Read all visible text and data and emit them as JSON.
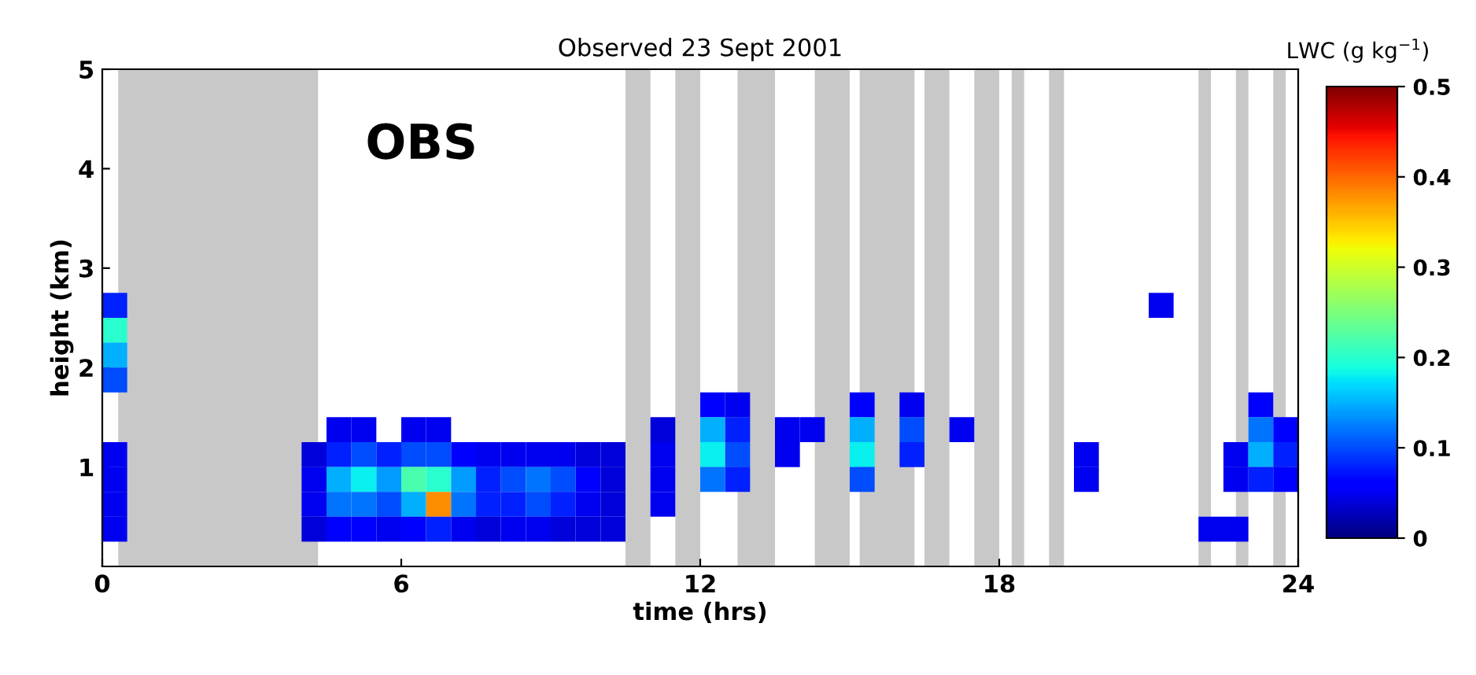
{
  "chart_data": {
    "type": "scatter",
    "title": "Observed 23 Sept 2001",
    "xlabel": "time (hrs)",
    "ylabel": "height (km)",
    "clabel": "LWC (g kg$^{−1}$)",
    "annotations": [
      "OBS"
    ],
    "marker": "square",
    "xlim": [
      0,
      24
    ],
    "xticks": [
      0,
      6,
      12,
      18,
      24
    ],
    "ylim": [
      0,
      5
    ],
    "yticks": [
      1,
      2,
      3,
      4,
      5
    ],
    "clim": [
      0,
      0.5
    ],
    "cticks": [
      0,
      0.1,
      0.2,
      0.3,
      0.4,
      0.5
    ],
    "bands": [
      {
        "axis": "x",
        "from": 0.32,
        "to": 4.33,
        "color": "#c8c8c8"
      },
      {
        "axis": "x",
        "from": 10.5,
        "to": 11.0,
        "color": "#c8c8c8"
      },
      {
        "axis": "x",
        "from": 11.5,
        "to": 12.0,
        "color": "#c8c8c8"
      },
      {
        "axis": "x",
        "from": 12.75,
        "to": 13.5,
        "color": "#c8c8c8"
      },
      {
        "axis": "x",
        "from": 14.3,
        "to": 15.0,
        "color": "#c8c8c8"
      },
      {
        "axis": "x",
        "from": 15.2,
        "to": 16.3,
        "color": "#c8c8c8"
      },
      {
        "axis": "x",
        "from": 16.5,
        "to": 17.0,
        "color": "#c8c8c8"
      },
      {
        "axis": "x",
        "from": 17.5,
        "to": 18.0,
        "color": "#c8c8c8"
      },
      {
        "axis": "x",
        "from": 18.25,
        "to": 18.5,
        "color": "#c8c8c8"
      },
      {
        "axis": "x",
        "from": 19.0,
        "to": 19.3,
        "color": "#c8c8c8"
      },
      {
        "axis": "x",
        "from": 22.0,
        "to": 22.25,
        "color": "#c8c8c8"
      },
      {
        "axis": "x",
        "from": 22.75,
        "to": 23.0,
        "color": "#c8c8c8"
      },
      {
        "axis": "x",
        "from": 23.5,
        "to": 23.75,
        "color": "#c8c8c8"
      }
    ],
    "series": [
      {
        "x": [
          0.25,
          21.25,
          0.25,
          0.25,
          0.25,
          12.25,
          12.75,
          15.25,
          16.25,
          23.25,
          4.75,
          5.25,
          6.25,
          6.75,
          11.25,
          12.25,
          12.75,
          13.75,
          14.25,
          15.25,
          16.25,
          17.25,
          23.25,
          23.75,
          0.25,
          4.25,
          4.75,
          5.25,
          5.75,
          6.25,
          6.75,
          7.25,
          7.75,
          8.25,
          8.75,
          9.25,
          9.75,
          10.25,
          11.25,
          12.25,
          12.75,
          13.75,
          15.25,
          16.25,
          19.75,
          22.75,
          23.25,
          23.75,
          0.25,
          4.25,
          4.75,
          5.25,
          5.75,
          6.25,
          6.75,
          7.25,
          7.75,
          8.25,
          8.75,
          9.25,
          9.75,
          10.25,
          11.25,
          12.25,
          12.75,
          15.25,
          19.75,
          22.75,
          23.25,
          23.75,
          0.25,
          4.25,
          4.75,
          5.25,
          5.75,
          6.25,
          6.75,
          7.25,
          7.75,
          8.25,
          8.75,
          9.25,
          9.75,
          10.25,
          11.25,
          0.25,
          4.25,
          4.75,
          5.25,
          5.75,
          6.25,
          6.75,
          7.25,
          7.75,
          8.25,
          8.75,
          9.25,
          9.75,
          10.25,
          22.25,
          22.75
        ],
        "values": [
          2.625,
          2.625,
          2.375,
          2.125,
          1.875,
          1.625,
          1.625,
          1.625,
          1.625,
          1.625,
          1.375,
          1.375,
          1.375,
          1.375,
          1.375,
          1.375,
          1.375,
          1.375,
          1.375,
          1.375,
          1.375,
          1.375,
          1.375,
          1.375,
          1.125,
          1.125,
          1.125,
          1.125,
          1.125,
          1.125,
          1.125,
          1.125,
          1.125,
          1.125,
          1.125,
          1.125,
          1.125,
          1.125,
          1.125,
          1.125,
          1.125,
          1.125,
          1.125,
          1.125,
          1.125,
          1.125,
          1.125,
          1.125,
          0.875,
          0.875,
          0.875,
          0.875,
          0.875,
          0.875,
          0.875,
          0.875,
          0.875,
          0.875,
          0.875,
          0.875,
          0.875,
          0.875,
          0.875,
          0.875,
          0.875,
          0.875,
          0.875,
          0.875,
          0.875,
          0.875,
          0.625,
          0.625,
          0.625,
          0.625,
          0.625,
          0.625,
          0.625,
          0.625,
          0.625,
          0.625,
          0.625,
          0.625,
          0.625,
          0.625,
          0.625,
          0.375,
          0.375,
          0.375,
          0.375,
          0.375,
          0.375,
          0.375,
          0.375,
          0.375,
          0.375,
          0.375,
          0.375,
          0.375,
          0.375,
          0.375,
          0.375
        ],
        "cvalues": [
          0.08,
          0.05,
          0.2,
          0.15,
          0.1,
          0.06,
          0.05,
          0.06,
          0.05,
          0.06,
          0.05,
          0.05,
          0.05,
          0.05,
          0.04,
          0.15,
          0.08,
          0.05,
          0.05,
          0.15,
          0.1,
          0.05,
          0.12,
          0.06,
          0.05,
          0.04,
          0.08,
          0.1,
          0.08,
          0.1,
          0.1,
          0.06,
          0.05,
          0.05,
          0.05,
          0.05,
          0.04,
          0.04,
          0.05,
          0.18,
          0.1,
          0.05,
          0.18,
          0.08,
          0.05,
          0.05,
          0.15,
          0.08,
          0.05,
          0.05,
          0.15,
          0.18,
          0.14,
          0.22,
          0.2,
          0.14,
          0.08,
          0.1,
          0.12,
          0.1,
          0.06,
          0.04,
          0.05,
          0.12,
          0.08,
          0.1,
          0.05,
          0.05,
          0.08,
          0.06,
          0.05,
          0.05,
          0.12,
          0.12,
          0.1,
          0.15,
          0.38,
          0.12,
          0.08,
          0.08,
          0.1,
          0.08,
          0.05,
          0.04,
          0.05,
          0.05,
          0.04,
          0.06,
          0.06,
          0.05,
          0.06,
          0.08,
          0.05,
          0.04,
          0.05,
          0.05,
          0.04,
          0.04,
          0.04,
          0.05,
          0.05
        ]
      }
    ]
  }
}
